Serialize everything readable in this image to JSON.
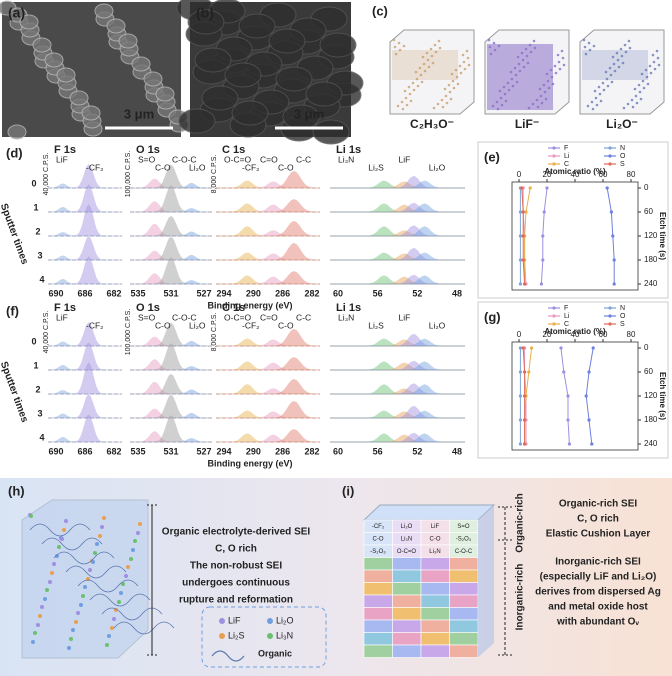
{
  "panels": {
    "a": {
      "label": "(a)",
      "scale": "3 μm"
    },
    "b": {
      "label": "(b)",
      "scale": "3 μm"
    },
    "c": {
      "label": "(c)",
      "species": [
        "C₂H₃O⁻",
        "LiF⁻",
        "Li₂O⁻"
      ]
    },
    "d": {
      "label": "(d)",
      "x_label": "Binding energy (eV)",
      "y_label": "Sputter times",
      "sputter": [
        0,
        1,
        2,
        3,
        4
      ],
      "regions": [
        {
          "title": "F 1s",
          "scale": "40,000 C.P.S.",
          "ticks": [
            690,
            686,
            682
          ],
          "peaks": [
            "LiF",
            "-CF₂"
          ]
        },
        {
          "title": "O 1s",
          "scale": "100,000 C.P.S.",
          "ticks": [
            535,
            531,
            527
          ],
          "peaks": [
            "S=O",
            "C-O",
            "C-O-C",
            "Li₂O"
          ]
        },
        {
          "title": "C 1s",
          "scale": "8,000 C.P.S.",
          "ticks": [
            294,
            290,
            286,
            282
          ],
          "peaks": [
            "O-C=O",
            "-CF₂",
            "C=O",
            "C-O",
            "C-C"
          ]
        },
        {
          "title": "Li 1s",
          "ticks": [
            60,
            56,
            52,
            48
          ],
          "peaks": [
            "Li₃N",
            "Li₂S",
            "LiF",
            "Li₂O"
          ]
        }
      ]
    },
    "f": {
      "label": "(f)",
      "x_label": "Binding energy (eV)",
      "y_label": "Sputter times",
      "sputter": [
        0,
        1,
        2,
        3,
        4
      ],
      "regions": [
        {
          "title": "F 1s",
          "scale": "40,000 C.P.S.",
          "ticks": [
            690,
            686,
            682
          ],
          "peaks": [
            "LiF",
            "-CF₂"
          ]
        },
        {
          "title": "O 1s",
          "scale": "100,000 C.P.S.",
          "ticks": [
            535,
            531,
            527
          ],
          "peaks": [
            "S=O",
            "C-O",
            "C-O-C",
            "Li₂O"
          ]
        },
        {
          "title": "C 1s",
          "scale": "8,000 C.P.S.",
          "ticks": [
            294,
            290,
            286,
            282
          ],
          "peaks": [
            "O-C=O",
            "-CF₂",
            "C=O",
            "C-O",
            "C-C"
          ]
        },
        {
          "title": "Li 1s",
          "ticks": [
            60,
            56,
            52,
            48
          ],
          "peaks": [
            "Li₃N",
            "Li₂S",
            "LiF",
            "Li₂O"
          ]
        }
      ]
    },
    "h": {
      "label": "(h)",
      "text": [
        "Organic electrolyte-derived SEI",
        "C, O rich",
        "The non-robust SEI",
        "undergoes continuous",
        "rupture and reformation"
      ],
      "legend": [
        "LiF",
        "Li₂O",
        "Li₂S",
        "Li₃N",
        "Organic"
      ]
    },
    "i": {
      "label": "(i)",
      "side": [
        "Organic-rich",
        "Inorganic-rich"
      ],
      "text": [
        "Organic-rich SEI",
        "C, O rich",
        "Elastic Cushion Layer",
        "Inorganic-rich SEI",
        "(especially LiF and Li₂O)",
        "derives from dispersed Ag",
        "and metal oxide host",
        "with abundant Oᵥ"
      ],
      "blocks": [
        "-CF₂",
        "Li₂O",
        "LiF",
        "S=O",
        "C-O",
        "Li₃N",
        "C-O",
        "-S₂O₃",
        "-S₂O₃",
        "O-C=O",
        "Li₃N",
        "C-O-C"
      ]
    }
  },
  "chart_data": [
    {
      "type": "line",
      "orientation": "horizontal",
      "label": "(e)",
      "y_label": "Atomic ratio (%)",
      "x_label": "Etch time (s)",
      "x": [
        0,
        60,
        120,
        180,
        240
      ],
      "xlim": [
        -15,
        255
      ],
      "xticks": [
        0,
        60,
        120,
        180,
        240
      ],
      "ylim": [
        -5,
        85
      ],
      "yticks": [
        0,
        20,
        40,
        60,
        80
      ],
      "series": [
        {
          "name": "F",
          "color": "#9f8fe0",
          "values": [
            20,
            18,
            17,
            17,
            16
          ]
        },
        {
          "name": "N",
          "color": "#7fa3d8",
          "values": [
            1,
            1,
            1,
            1,
            1
          ]
        },
        {
          "name": "Li",
          "color": "#e59bc0",
          "values": [
            3,
            3,
            4,
            4,
            5
          ]
        },
        {
          "name": "O",
          "color": "#6f7fe0",
          "values": [
            63,
            66,
            67,
            68,
            68
          ]
        },
        {
          "name": "C",
          "color": "#e8b04a",
          "values": [
            8,
            5,
            4,
            4,
            4
          ]
        },
        {
          "name": "S",
          "color": "#e06a5a",
          "values": [
            2,
            3,
            3,
            3,
            4
          ]
        }
      ]
    },
    {
      "type": "line",
      "orientation": "horizontal",
      "label": "(g)",
      "y_label": "Atomic ratio (%)",
      "x_label": "Etch time (s)",
      "x": [
        0,
        60,
        120,
        180,
        240
      ],
      "xlim": [
        -15,
        255
      ],
      "xticks": [
        0,
        60,
        120,
        180,
        240
      ],
      "ylim": [
        -5,
        85
      ],
      "yticks": [
        0,
        20,
        40,
        60,
        80
      ],
      "series": [
        {
          "name": "F",
          "color": "#9f8fe0",
          "values": [
            30,
            32,
            35,
            35,
            36
          ]
        },
        {
          "name": "N",
          "color": "#7fa3d8",
          "values": [
            1,
            1,
            1,
            1,
            1
          ]
        },
        {
          "name": "Li",
          "color": "#e59bc0",
          "values": [
            4,
            4,
            5,
            5,
            5
          ]
        },
        {
          "name": "O",
          "color": "#6f7fe0",
          "values": [
            53,
            50,
            48,
            50,
            52
          ]
        },
        {
          "name": "C",
          "color": "#e8b04a",
          "values": [
            9,
            7,
            5,
            4,
            4
          ]
        },
        {
          "name": "S",
          "color": "#e06a5a",
          "values": [
            3,
            4,
            4,
            4,
            4
          ]
        }
      ]
    }
  ]
}
